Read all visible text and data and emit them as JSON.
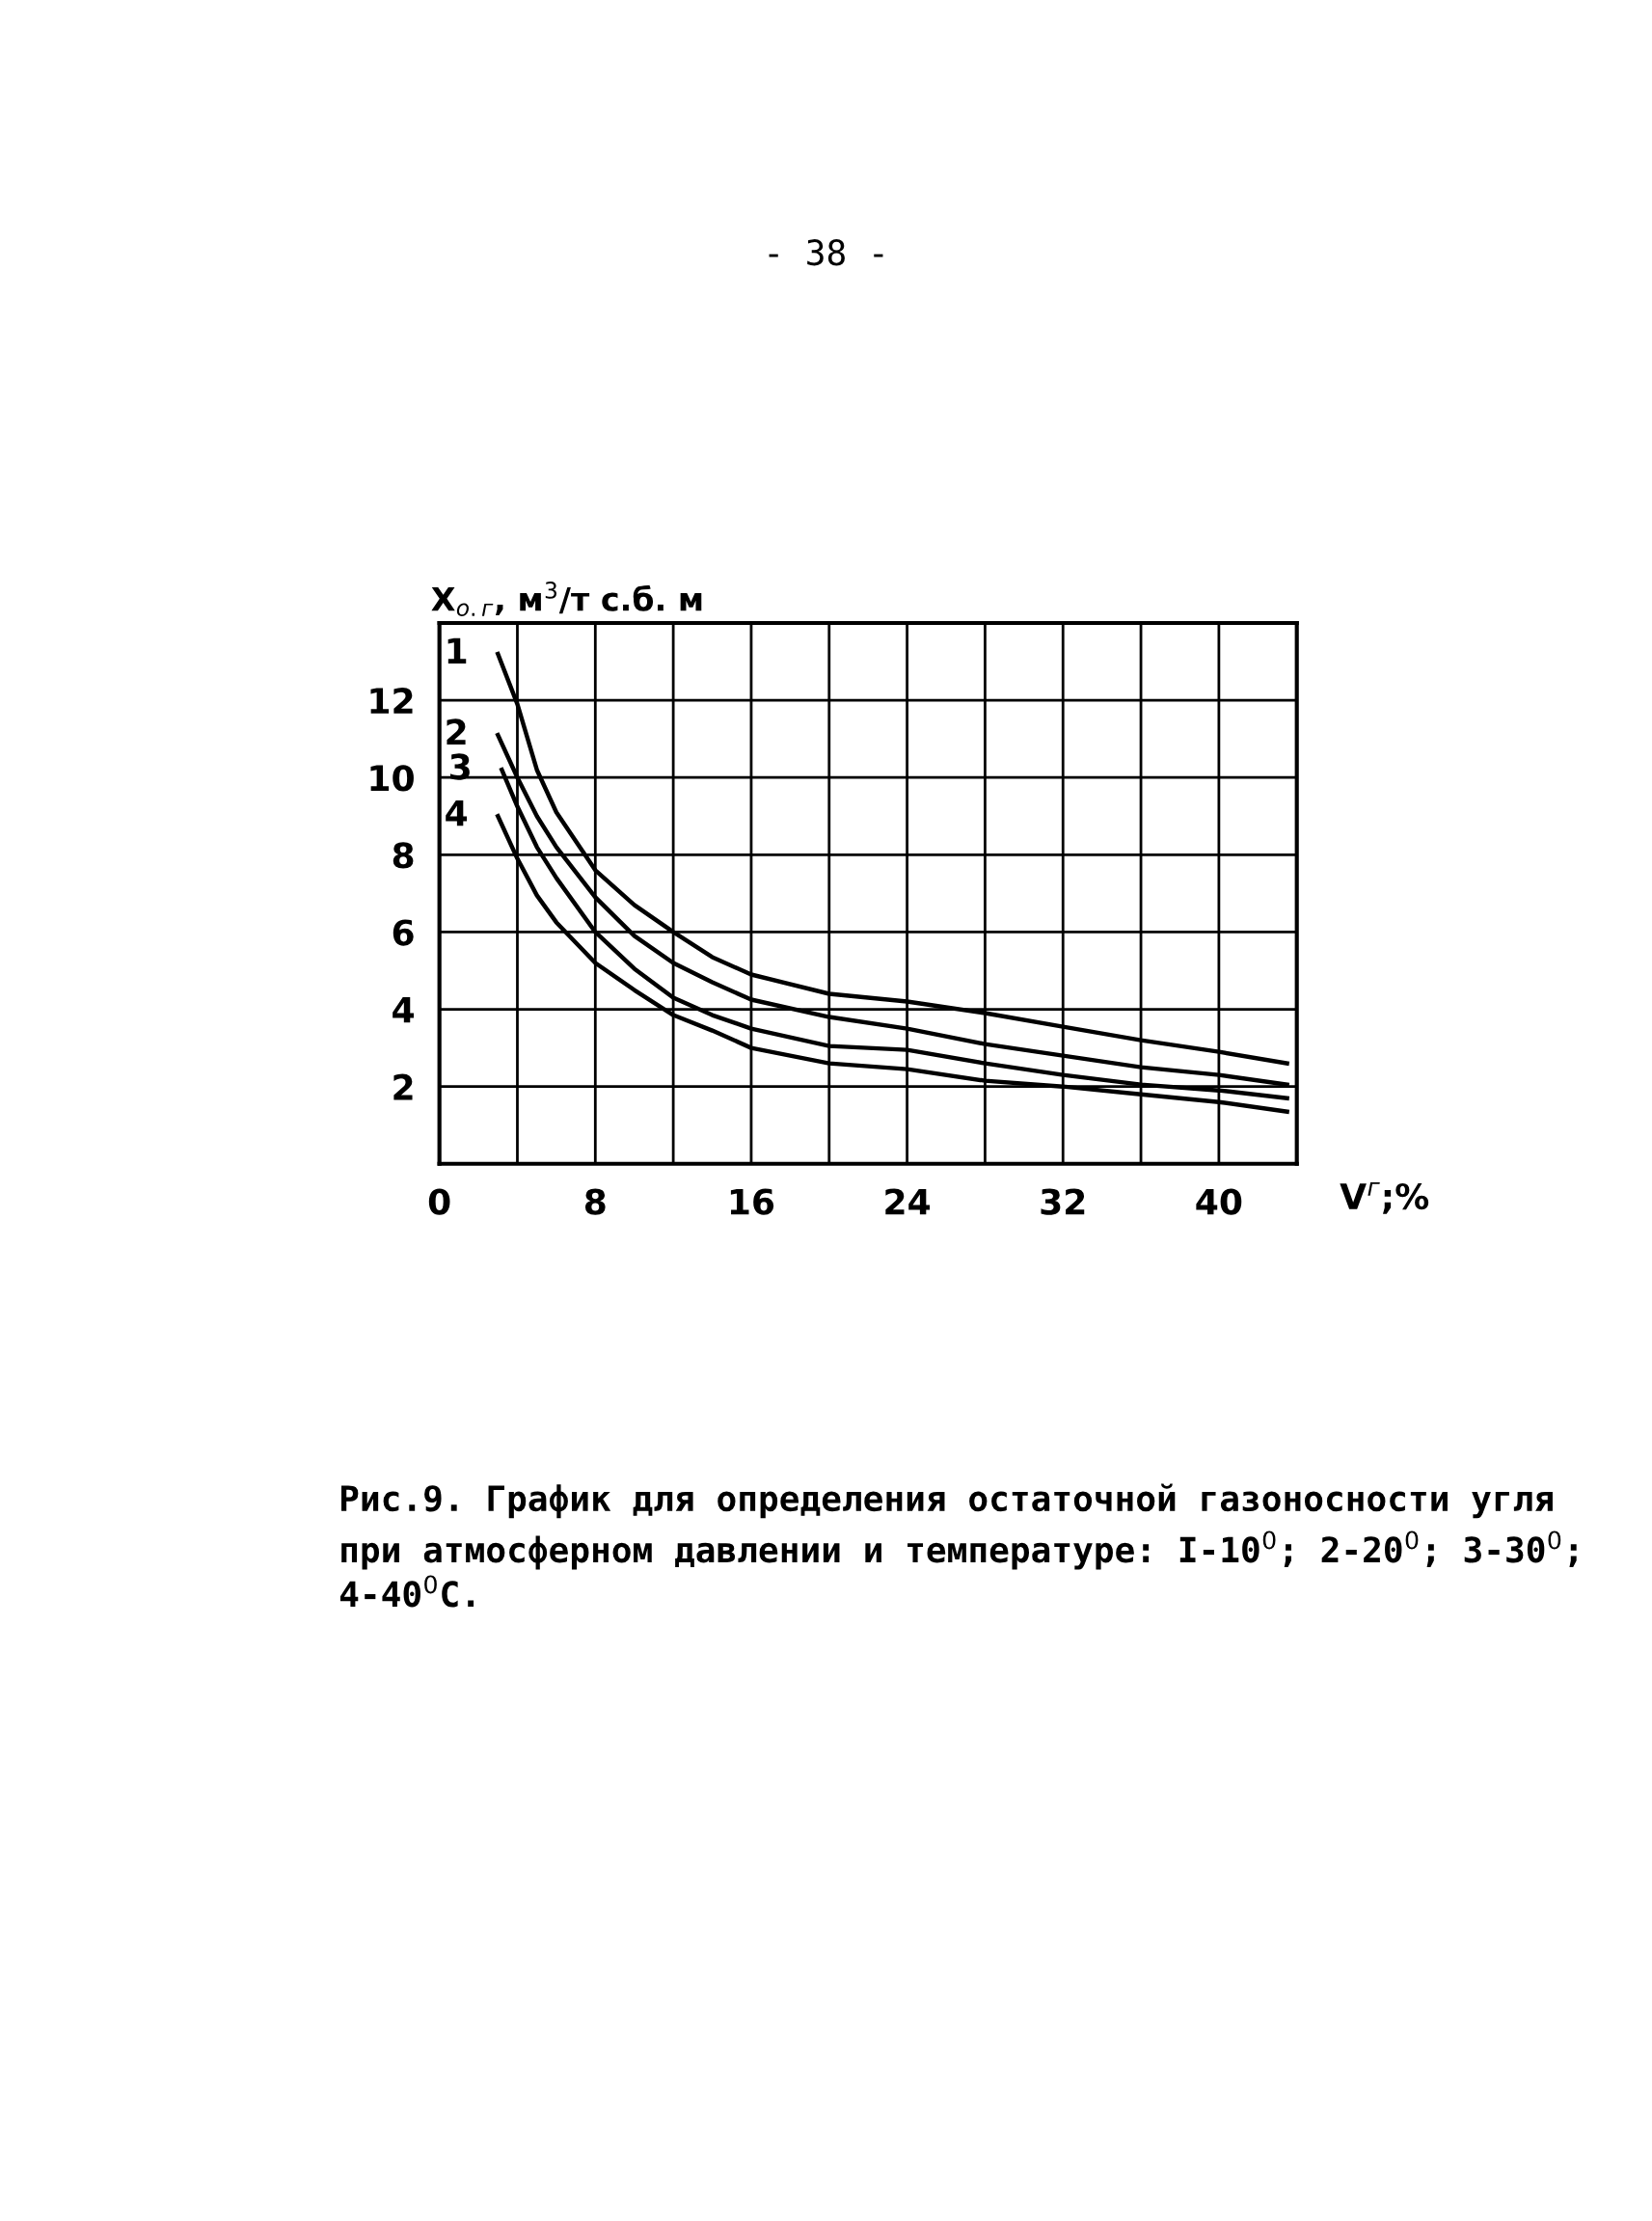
{
  "chart_data": {
    "type": "line",
    "xlabel": "V$^{г}$;%",
    "ylabel": "X$_{о.г}$, м$^{3}$/т с.б. м",
    "x": [
      3,
      4,
      5,
      6,
      8,
      10,
      12,
      14,
      16,
      20,
      24,
      28,
      32,
      36,
      40,
      43.5
    ],
    "series": [
      {
        "name": "1",
        "color": "#000000",
        "values": [
          13.2,
          11.9,
          10.2,
          9.1,
          7.6,
          6.7,
          6.0,
          5.35,
          4.9,
          4.4,
          4.2,
          3.9,
          3.55,
          3.2,
          2.9,
          2.6
        ]
      },
      {
        "name": "2",
        "color": "#000000",
        "values": [
          11.1,
          10.0,
          9.0,
          8.2,
          6.9,
          5.9,
          5.2,
          4.7,
          4.25,
          3.8,
          3.5,
          3.1,
          2.8,
          2.5,
          2.3,
          2.05
        ]
      },
      {
        "name": "3",
        "color": "#000000",
        "x": [
          3.2,
          4,
          5,
          6,
          8,
          10,
          12,
          14,
          16,
          20,
          24,
          28,
          32,
          36,
          40,
          43.5
        ],
        "values": [
          10.2,
          9.25,
          8.2,
          7.4,
          6.0,
          5.05,
          4.3,
          3.85,
          3.5,
          3.05,
          2.95,
          2.6,
          2.3,
          2.05,
          1.9,
          1.7
        ]
      },
      {
        "name": "4",
        "color": "#000000",
        "values": [
          9.0,
          7.9,
          6.95,
          6.25,
          5.2,
          4.5,
          3.85,
          3.45,
          3.0,
          2.6,
          2.45,
          2.15,
          2.0,
          1.8,
          1.6,
          1.35
        ]
      }
    ],
    "xlim": [
      0,
      44
    ],
    "ylim": [
      0,
      14
    ],
    "xticks": [
      0,
      {
        "value": 4,
        "label": null
      },
      8,
      {
        "value": 12,
        "label": null
      },
      16,
      {
        "value": 20,
        "label": null
      },
      24,
      {
        "value": 28,
        "label": null
      },
      32,
      {
        "value": 36,
        "label": null
      },
      40,
      {
        "value": 44,
        "label": null
      }
    ],
    "yticks": [
      {
        "value": 0,
        "label": null
      },
      2,
      4,
      6,
      8,
      10,
      12,
      {
        "value": 14,
        "label": null
      }
    ],
    "grid": true,
    "line_style": "solid",
    "marker": "none",
    "annotations": [
      "- 38 -",
      "Рис.9. График для определения остаточной газоносности угля при атмосферном давлении и температуре: I-10$^{0}$; 2-20$^{0}$; 3-30$^{0}$; 4-40$^{0}$С."
    ]
  }
}
